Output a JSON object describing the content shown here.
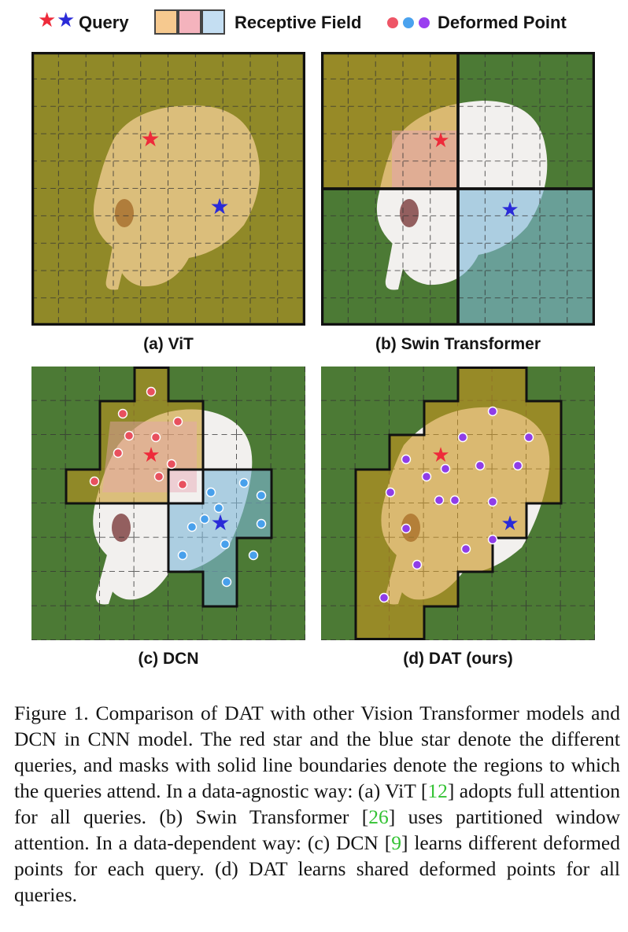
{
  "legend": {
    "query_label": "Query",
    "receptive_label": "Receptive Field",
    "deformed_label": "Deformed Point",
    "query_star_colors": [
      "#ee2a3a",
      "#2a2ad8"
    ],
    "receptive_swatch_colors": [
      "#f6c98f",
      "#f4b3bd",
      "#c4def2"
    ],
    "deformed_dot_colors": [
      "#ee5566",
      "#4aa2ee",
      "#9a3ff0"
    ]
  },
  "panels": [
    {
      "id": "a",
      "caption": "(a) ViT"
    },
    {
      "id": "b",
      "caption": "(b) Swin Transformer"
    },
    {
      "id": "c",
      "caption": "(c) DCN"
    },
    {
      "id": "d",
      "caption": "(d) DAT (ours)"
    }
  ],
  "colors": {
    "grass": "#4c7a35",
    "dog": "#f2f0ee",
    "orange_mask": "#c9951e",
    "red_mask": "#e6a4b1",
    "blue_mask": "#7db7d9",
    "red_star": "#ee2a3a",
    "blue_star": "#2a2ad8",
    "red_point": "#e8505e",
    "blue_point": "#48a0ec",
    "purple_point": "#8f3de8",
    "citation": "#33c233"
  },
  "figure_caption": {
    "p1": "Figure 1. Comparison of DAT with other Vision Transformer models and DCN in CNN model. The red star and the blue star denote the different queries, and masks with solid line boundaries denote the regions to which the queries attend. In a data-agnostic way: (a) ViT [",
    "ref1": "12",
    "p2": "] adopts full attention for all queries. (b) Swin Transformer [",
    "ref2": "26",
    "p3": "] uses partitioned window attention. In a data-dependent way: (c) DCN [",
    "ref3": "9",
    "p4": "] learns different deformed points for each query. (d) DAT learns shared deformed points for all queries."
  }
}
